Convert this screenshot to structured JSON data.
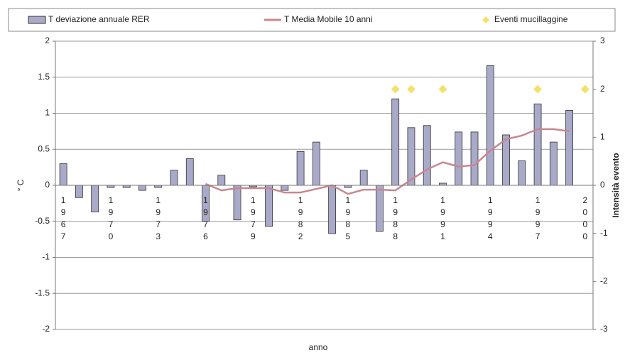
{
  "chart_data": {
    "type": "bar_line",
    "axis_labels": {
      "x": "anno",
      "y": "° C",
      "y2": "Intensità evento"
    },
    "categories": [
      "1967",
      null,
      null,
      "1970",
      null,
      null,
      "1973",
      null,
      null,
      "1976",
      null,
      null,
      "1979",
      null,
      null,
      "1982",
      null,
      null,
      "1985",
      null,
      null,
      "1988",
      null,
      null,
      "1991",
      null,
      null,
      "1994",
      null,
      null,
      "1997",
      null,
      null,
      "2000"
    ],
    "series": [
      {
        "name": "T deviazione annuale RER",
        "kind": "bar",
        "color": "#a9a9c9",
        "values": [
          0.3,
          -0.17,
          -0.37,
          -0.03,
          -0.03,
          -0.07,
          -0.03,
          0.21,
          0.37,
          -0.5,
          0.14,
          -0.48,
          -0.02,
          -0.57,
          -0.07,
          0.47,
          0.6,
          -0.67,
          -0.03,
          0.21,
          -0.64,
          1.2,
          0.8,
          0.83,
          0.03,
          0.74,
          0.74,
          1.66,
          0.7,
          0.34,
          1.13,
          0.6,
          1.04,
          null
        ]
      },
      {
        "name": "T Media Mobile 10 anni",
        "kind": "line",
        "color": "#c9868e",
        "values": [
          null,
          null,
          null,
          null,
          null,
          null,
          null,
          null,
          null,
          0.02,
          -0.07,
          -0.04,
          -0.04,
          -0.04,
          -0.1,
          -0.1,
          -0.05,
          0.0,
          -0.12,
          -0.06,
          -0.06,
          -0.07,
          0.08,
          0.22,
          0.32,
          0.26,
          0.28,
          0.48,
          0.64,
          0.69,
          0.78,
          0.78,
          0.75,
          null
        ]
      },
      {
        "name": "Eventi mucillaggine",
        "kind": "scatter",
        "axis": "y2",
        "color": "#f3e26a",
        "values": [
          null,
          null,
          null,
          null,
          null,
          null,
          null,
          null,
          null,
          null,
          null,
          null,
          null,
          null,
          null,
          null,
          null,
          null,
          null,
          null,
          null,
          2,
          2,
          null,
          2,
          null,
          null,
          null,
          null,
          null,
          2,
          null,
          null,
          2
        ]
      }
    ],
    "ylim": [
      -2,
      2
    ],
    "yticks": [
      2,
      1.5,
      1,
      0.5,
      0,
      -0.5,
      -1,
      -1.5,
      -2
    ],
    "y2lim": [
      -3,
      3
    ],
    "y2ticks": [
      3,
      2,
      1,
      0,
      -1,
      -2,
      -3
    ],
    "grid": true,
    "legend": "top"
  }
}
